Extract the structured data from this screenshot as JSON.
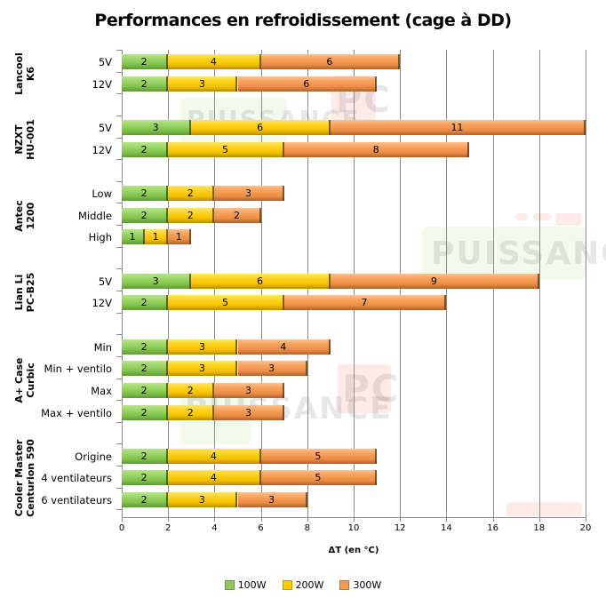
{
  "chart_data": {
    "type": "bar",
    "orientation": "horizontal",
    "stacked": true,
    "title": "Performances en refroidissement (cage à DD)",
    "xlabel": "ΔT (en °C)",
    "ylabel": "",
    "xlim": [
      0,
      20
    ],
    "xticks": [
      "0",
      "2",
      "4",
      "6",
      "8",
      "10",
      "12",
      "14",
      "16",
      "18",
      "20"
    ],
    "grid": true,
    "legend_position": "bottom",
    "legend": [
      "100W",
      "200W",
      "300W"
    ],
    "colors": {
      "100W": "#8cc957",
      "200W": "#ffcc00",
      "300W": "#f39a50"
    },
    "groups": [
      {
        "name": "Lancool K6",
        "lines": [
          "Lancool",
          "K6"
        ],
        "rows": [
          {
            "label": "5V",
            "values": [
              2,
              4,
              6
            ]
          },
          {
            "label": "12V",
            "values": [
              2,
              3,
              6
            ]
          }
        ]
      },
      {
        "name": "NZXT HU-001",
        "lines": [
          "NZXT",
          "HU-001"
        ],
        "rows": [
          {
            "label": "5V",
            "values": [
              3,
              6,
              11
            ]
          },
          {
            "label": "12V",
            "values": [
              2,
              5,
              8
            ]
          }
        ]
      },
      {
        "name": "Antec 1200",
        "lines": [
          "Antec",
          "1200"
        ],
        "rows": [
          {
            "label": "Low",
            "values": [
              2,
              2,
              3
            ]
          },
          {
            "label": "Middle",
            "values": [
              2,
              2,
              2
            ]
          },
          {
            "label": "High",
            "values": [
              1,
              1,
              1
            ]
          }
        ]
      },
      {
        "name": "Lian Li PC-B25",
        "lines": [
          "Lian Li",
          "PC-B25"
        ],
        "rows": [
          {
            "label": "5V",
            "values": [
              3,
              6,
              9
            ]
          },
          {
            "label": "12V",
            "values": [
              2,
              5,
              7
            ]
          }
        ]
      },
      {
        "name": "A+ Case Curbic",
        "lines": [
          "A+ Case",
          "Curbic"
        ],
        "rows": [
          {
            "label": "Min",
            "values": [
              2,
              3,
              4
            ]
          },
          {
            "label": "Min + ventilo",
            "values": [
              2,
              3,
              3
            ]
          },
          {
            "label": "Max",
            "values": [
              2,
              2,
              3
            ]
          },
          {
            "label": "Max + ventilo",
            "values": [
              2,
              2,
              3
            ]
          }
        ]
      },
      {
        "name": "Cooler Master Centurion 590",
        "lines": [
          "Cooler Master",
          "Centurion 590"
        ],
        "rows": [
          {
            "label": "Origine",
            "values": [
              2,
              4,
              5
            ]
          },
          {
            "label": "4 ventilateurs",
            "values": [
              2,
              4,
              5
            ]
          },
          {
            "label": "6 ventilateurs",
            "values": [
              2,
              3,
              3
            ]
          }
        ]
      }
    ]
  },
  "watermarks": [
    "PUISSANCE PC",
    "PUISSANC",
    "PUISSANCE PC"
  ]
}
